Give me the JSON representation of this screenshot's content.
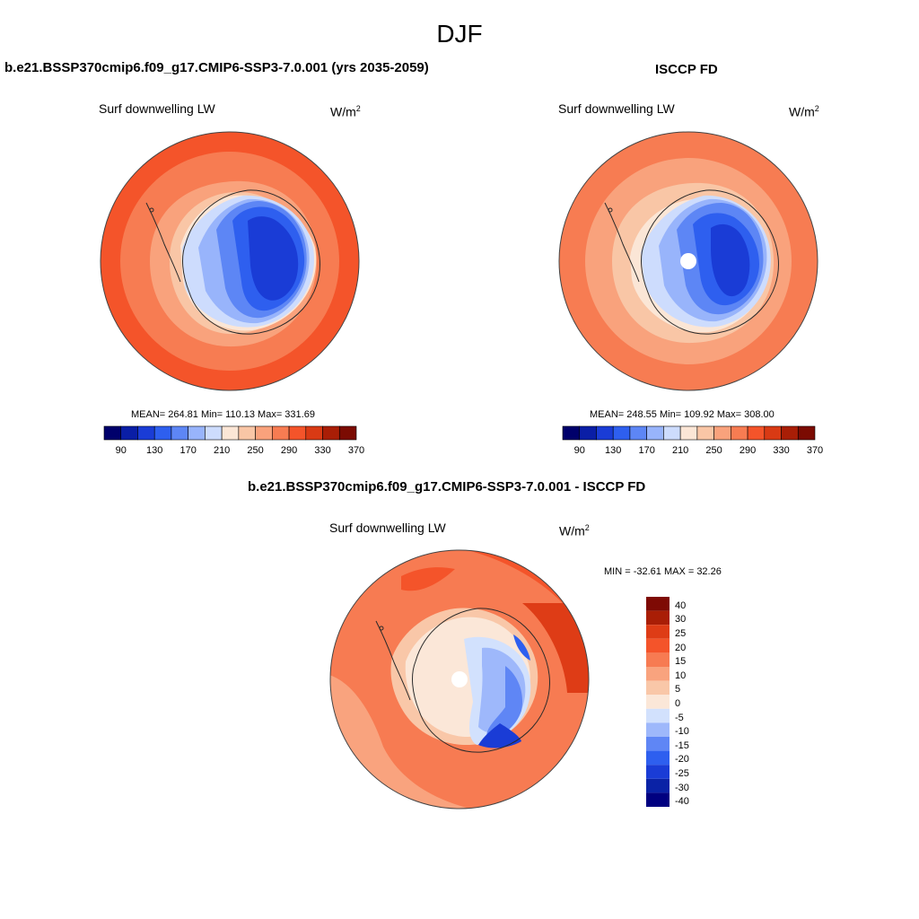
{
  "season": "DJF",
  "colors": {
    "hbar": [
      "#00006b",
      "#0a1ea6",
      "#1a3cd6",
      "#2e5fef",
      "#5d86f5",
      "#98b4fb",
      "#cddcfd",
      "#fbe6d6",
      "#f9c6a6",
      "#f9a27c",
      "#f77c52",
      "#f4542a",
      "#d93a14",
      "#a91e06",
      "#7b0b02"
    ],
    "vbar": [
      "#000080",
      "#0a22a6",
      "#1a3cd6",
      "#2e5fef",
      "#5f86f5",
      "#9eb8fb",
      "#d2e1fd",
      "#fbe7d8",
      "#f9c7a8",
      "#f9a37e",
      "#f77b52",
      "#f4542a",
      "#de3c16",
      "#a91e06",
      "#7e0a04"
    ],
    "land_line": "#2a2a2a"
  },
  "panels": [
    {
      "title": "b.e21.BSSP370cmip6.f09_g17.CMIP6-SSP3-7.0.001 (yrs 2035-2059)",
      "variable": "Surf downwelling LW",
      "units_base": "W/m",
      "units_exp": "2",
      "stats_text": "MEAN= 264.81  Min= 110.13  Max= 331.69",
      "colorbar_ticks": [
        "90",
        "130",
        "170",
        "210",
        "250",
        "290",
        "330",
        "370"
      ],
      "icons": {
        "map": "south-polar-stereographic-map"
      }
    },
    {
      "title": "ISCCP FD",
      "variable": "Surf downwelling LW",
      "units_base": "W/m",
      "units_exp": "2",
      "stats_text": "MEAN= 248.55  Min= 109.92  Max= 308.00",
      "colorbar_ticks": [
        "90",
        "130",
        "170",
        "210",
        "250",
        "290",
        "330",
        "370"
      ],
      "icons": {
        "map": "south-polar-stereographic-map"
      }
    },
    {
      "title": "b.e21.BSSP370cmip6.f09_g17.CMIP6-SSP3-7.0.001 - ISCCP FD",
      "variable": "Surf downwelling LW",
      "units_base": "W/m",
      "units_exp": "2",
      "stats_text": "MIN = -32.61 MAX =  32.26",
      "colorbar_ticks": [
        "40",
        "30",
        "25",
        "20",
        "15",
        "10",
        "5",
        "0",
        "-5",
        "-10",
        "-15",
        "-20",
        "-25",
        "-30",
        "-40"
      ],
      "icons": {
        "map": "south-polar-stereographic-map"
      }
    }
  ]
}
